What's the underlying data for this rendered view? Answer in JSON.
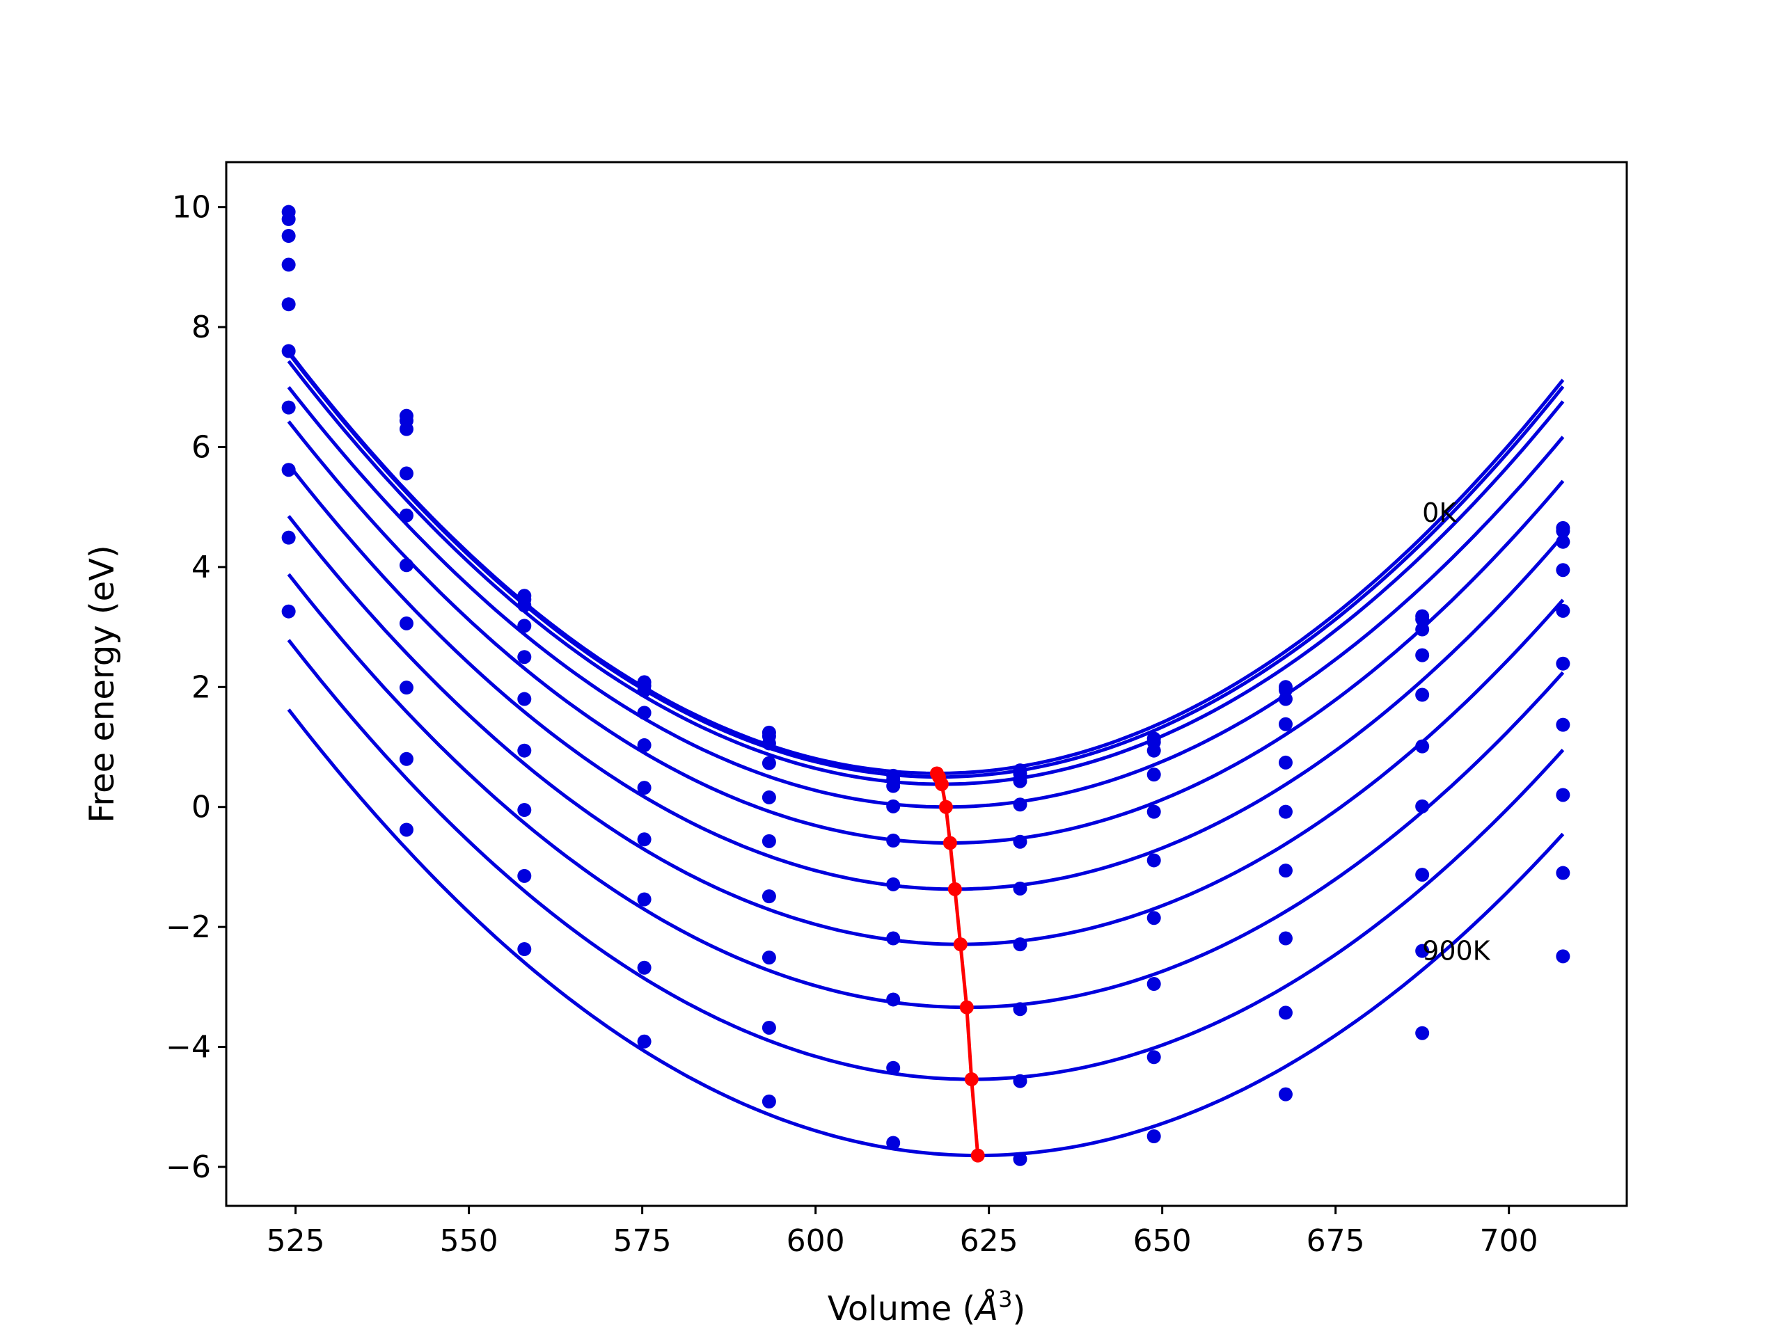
{
  "chart_data": {
    "type": "line",
    "xlabel_main": "Volume (",
    "xlabel_unit": "Å",
    "xlabel_exp": "3",
    "xlabel_close": ")",
    "ylabel": "Free energy (eV)",
    "xlim": [
      515,
      717
    ],
    "ylim": [
      -6.65,
      10.75
    ],
    "xticks": [
      525,
      550,
      575,
      600,
      625,
      650,
      675,
      700
    ],
    "yticks": [
      -6,
      -4,
      -2,
      0,
      2,
      4,
      6,
      8,
      10
    ],
    "ytick_labels": [
      "−6",
      "−4",
      "−2",
      "0",
      "2",
      "4",
      "6",
      "8",
      "10"
    ],
    "grid": false,
    "series_color": "#0000dd",
    "minimum_color": "#ff0000",
    "annotations": [
      {
        "text": "0K",
        "x": 687.5,
        "y": 4.75
      },
      {
        "text": "900K",
        "x": 687.5,
        "y": -2.55
      }
    ],
    "volumes": [
      524,
      541,
      558,
      575.3,
      593.3,
      611.2,
      629.5,
      648.8,
      667.8,
      687.5,
      707.8
    ],
    "series": [
      {
        "min_v": 617.5,
        "min_f": 0.56,
        "points": [
          9.92,
          6.52,
          3.52,
          2.08,
          1.24,
          0.52,
          0.61,
          1.14,
          2.0,
          3.18,
          4.65
        ]
      },
      {
        "min_v": 617.8,
        "min_f": 0.5,
        "points": [
          9.8,
          6.44,
          3.46,
          2.02,
          1.18,
          0.46,
          0.55,
          1.08,
          1.95,
          3.13,
          4.6
        ]
      },
      {
        "min_v": 618.2,
        "min_f": 0.38,
        "points": [
          9.52,
          6.3,
          3.36,
          1.94,
          1.06,
          0.35,
          0.43,
          0.94,
          1.8,
          2.96,
          4.42
        ]
      },
      {
        "min_v": 618.8,
        "min_f": 0.0,
        "points": [
          9.04,
          5.56,
          3.02,
          1.57,
          0.73,
          0.01,
          0.04,
          0.54,
          1.38,
          2.53,
          3.95
        ]
      },
      {
        "min_v": 619.4,
        "min_f": -0.6,
        "points": [
          8.38,
          4.86,
          2.5,
          1.03,
          0.16,
          -0.56,
          -0.58,
          -0.08,
          0.74,
          1.87,
          3.27
        ]
      },
      {
        "min_v": 620.1,
        "min_f": -1.37,
        "points": [
          7.6,
          4.03,
          1.8,
          0.32,
          -0.57,
          -1.29,
          -1.36,
          -0.89,
          -0.08,
          1.01,
          2.39
        ]
      },
      {
        "min_v": 620.9,
        "min_f": -2.29,
        "points": [
          6.66,
          3.06,
          0.94,
          -0.54,
          -1.49,
          -2.19,
          -2.29,
          -1.85,
          -1.06,
          0.01,
          1.37
        ]
      },
      {
        "min_v": 621.8,
        "min_f": -3.34,
        "points": [
          5.62,
          1.99,
          -0.05,
          -1.54,
          -2.51,
          -3.21,
          -3.37,
          -2.95,
          -2.19,
          -1.13,
          0.2
        ]
      },
      {
        "min_v": 622.5,
        "min_f": -4.54,
        "points": [
          4.49,
          0.8,
          -1.15,
          -2.68,
          -3.68,
          -4.35,
          -4.57,
          -4.17,
          -3.43,
          -2.4,
          -1.1
        ]
      },
      {
        "min_v": 623.4,
        "min_f": -5.81,
        "points": [
          3.26,
          -0.38,
          -2.37,
          -3.91,
          -4.91,
          -5.6,
          -5.87,
          -5.49,
          -4.79,
          -3.77,
          -2.49
        ]
      }
    ]
  }
}
